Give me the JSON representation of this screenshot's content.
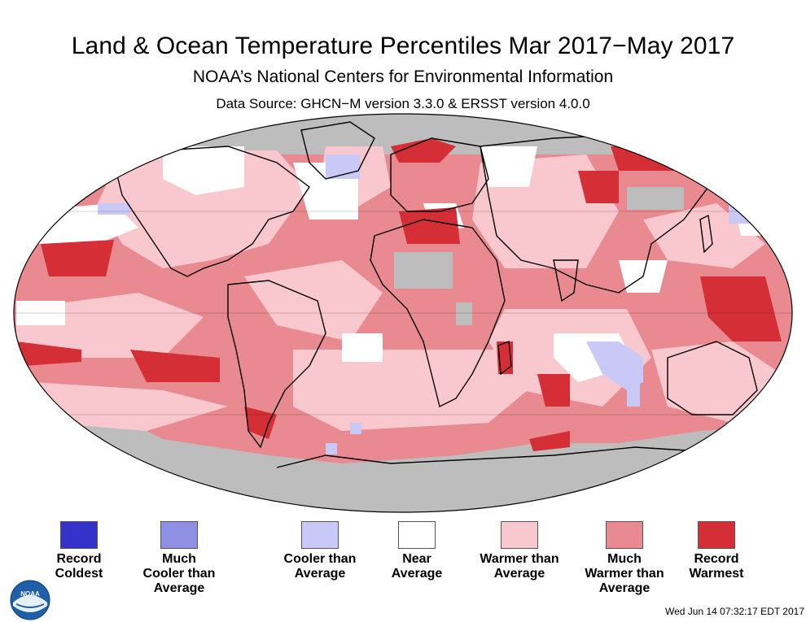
{
  "header": {
    "title": "Land & Ocean Temperature Percentiles Mar 2017−May 2017",
    "subtitle": "NOAA’s National Centers for Environmental Information",
    "source": "Data Source: GHCN−M version 3.3.0 & ERSST version 4.0.0"
  },
  "colors": {
    "record_coldest": "#3333cc",
    "much_cooler": "#8f8fe6",
    "cooler": "#c9c9f7",
    "near": "#ffffff",
    "warmer": "#f9c8ce",
    "much_warmer": "#e88a8f",
    "record_warmest": "#d42f36",
    "missing": "#bdbdbd",
    "outline": "#000000"
  },
  "legend": [
    {
      "line1": "Record",
      "line2": "Coldest",
      "line3": "",
      "color": "#3333cc",
      "icon": "swatch-record-coldest"
    },
    {
      "line1": "Much",
      "line2": "Cooler than",
      "line3": "Average",
      "color": "#8f8fe6",
      "icon": "swatch-much-cooler"
    },
    {
      "line1": "Cooler than",
      "line2": "Average",
      "line3": "",
      "color": "#c9c9f7",
      "icon": "swatch-cooler"
    },
    {
      "line1": "Near",
      "line2": "Average",
      "line3": "",
      "color": "#ffffff",
      "icon": "swatch-near"
    },
    {
      "line1": "Warmer than",
      "line2": "Average",
      "line3": "",
      "color": "#f9c8ce",
      "icon": "swatch-warmer"
    },
    {
      "line1": "Much",
      "line2": "Warmer than",
      "line3": "Average",
      "color": "#e88a8f",
      "icon": "swatch-much-warmer"
    },
    {
      "line1": "Record",
      "line2": "Warmest",
      "line3": "",
      "color": "#d42f36",
      "icon": "swatch-record-warmest"
    }
  ],
  "logo": {
    "text": "NOAA",
    "icon": "noaa-logo-icon"
  },
  "footer": {
    "timestamp": "Wed Jun 14 07:32:17 EDT 2017"
  }
}
